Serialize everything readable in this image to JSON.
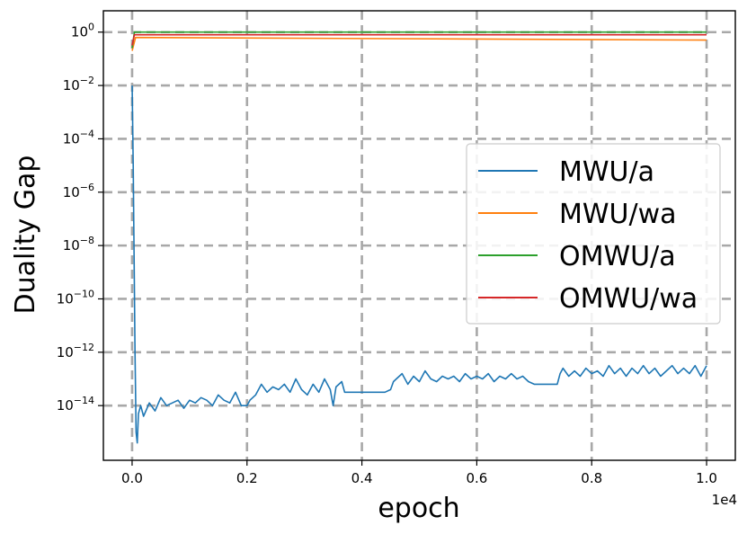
{
  "chart_data": {
    "type": "line",
    "xlabel": "epoch",
    "ylabel": "Duality Gap",
    "x_offset_label": "1e4",
    "xlim": [
      -500,
      10500
    ],
    "ylim_log10": [
      -16.05,
      0.8
    ],
    "yscale": "log",
    "grid": true,
    "legend_position": "center-right",
    "x_ticks": [
      {
        "value": 0,
        "label": "0.0"
      },
      {
        "value": 2000,
        "label": "0.2"
      },
      {
        "value": 4000,
        "label": "0.4"
      },
      {
        "value": 6000,
        "label": "0.6"
      },
      {
        "value": 8000,
        "label": "0.8"
      },
      {
        "value": 10000,
        "label": "1.0"
      }
    ],
    "y_ticks": [
      {
        "exp": 0,
        "base": "10",
        "sup": "0"
      },
      {
        "exp": -2,
        "base": "10",
        "sup": "−2"
      },
      {
        "exp": -4,
        "base": "10",
        "sup": "−4"
      },
      {
        "exp": -6,
        "base": "10",
        "sup": "−6"
      },
      {
        "exp": -8,
        "base": "10",
        "sup": "−8"
      },
      {
        "exp": -10,
        "base": "10",
        "sup": "−10"
      },
      {
        "exp": -12,
        "base": "10",
        "sup": "−12"
      },
      {
        "exp": -14,
        "base": "10",
        "sup": "−14"
      }
    ],
    "series": [
      {
        "name": "MWU/a",
        "color": "#1f77b4",
        "points": [
          [
            0,
            -2.0
          ],
          [
            20,
            -5.0
          ],
          [
            50,
            -12.0
          ],
          [
            70,
            -15.0
          ],
          [
            90,
            -15.4
          ],
          [
            110,
            -14.3
          ],
          [
            150,
            -14.0
          ],
          [
            200,
            -14.4
          ],
          [
            260,
            -14.1
          ],
          [
            300,
            -13.9
          ],
          [
            400,
            -14.2
          ],
          [
            500,
            -13.7
          ],
          [
            600,
            -14.0
          ],
          [
            700,
            -13.9
          ],
          [
            800,
            -13.8
          ],
          [
            900,
            -14.1
          ],
          [
            1000,
            -13.8
          ],
          [
            1100,
            -13.9
          ],
          [
            1200,
            -13.7
          ],
          [
            1300,
            -13.8
          ],
          [
            1400,
            -14.0
          ],
          [
            1500,
            -13.6
          ],
          [
            1600,
            -13.8
          ],
          [
            1700,
            -13.9
          ],
          [
            1800,
            -13.5
          ],
          [
            1900,
            -14.0
          ],
          [
            2000,
            -14.0
          ],
          [
            2050,
            -13.8
          ],
          [
            2150,
            -13.6
          ],
          [
            2250,
            -13.2
          ],
          [
            2350,
            -13.5
          ],
          [
            2450,
            -13.3
          ],
          [
            2550,
            -13.4
          ],
          [
            2650,
            -13.2
          ],
          [
            2750,
            -13.5
          ],
          [
            2850,
            -13.0
          ],
          [
            2950,
            -13.4
          ],
          [
            3050,
            -13.6
          ],
          [
            3150,
            -13.2
          ],
          [
            3250,
            -13.5
          ],
          [
            3350,
            -13.0
          ],
          [
            3450,
            -13.4
          ],
          [
            3500,
            -14.0
          ],
          [
            3550,
            -13.3
          ],
          [
            3650,
            -13.1
          ],
          [
            3700,
            -13.5
          ],
          [
            3800,
            -13.5
          ],
          [
            4000,
            -13.5
          ],
          [
            4200,
            -13.5
          ],
          [
            4400,
            -13.5
          ],
          [
            4500,
            -13.4
          ],
          [
            4550,
            -13.1
          ],
          [
            4600,
            -13.0
          ],
          [
            4700,
            -12.8
          ],
          [
            4800,
            -13.2
          ],
          [
            4900,
            -12.9
          ],
          [
            5000,
            -13.1
          ],
          [
            5100,
            -12.7
          ],
          [
            5200,
            -13.0
          ],
          [
            5300,
            -13.1
          ],
          [
            5400,
            -12.9
          ],
          [
            5500,
            -13.0
          ],
          [
            5600,
            -12.9
          ],
          [
            5700,
            -13.1
          ],
          [
            5800,
            -12.8
          ],
          [
            5900,
            -13.0
          ],
          [
            6000,
            -12.9
          ],
          [
            6100,
            -13.0
          ],
          [
            6200,
            -12.8
          ],
          [
            6300,
            -13.1
          ],
          [
            6400,
            -12.9
          ],
          [
            6500,
            -13.0
          ],
          [
            6600,
            -12.8
          ],
          [
            6700,
            -13.0
          ],
          [
            6800,
            -12.9
          ],
          [
            6900,
            -13.1
          ],
          [
            7000,
            -13.2
          ],
          [
            7200,
            -13.2
          ],
          [
            7400,
            -13.2
          ],
          [
            7450,
            -12.8
          ],
          [
            7500,
            -12.6
          ],
          [
            7600,
            -12.9
          ],
          [
            7700,
            -12.7
          ],
          [
            7800,
            -12.9
          ],
          [
            7900,
            -12.6
          ],
          [
            8000,
            -12.8
          ],
          [
            8100,
            -12.7
          ],
          [
            8200,
            -12.9
          ],
          [
            8300,
            -12.5
          ],
          [
            8400,
            -12.8
          ],
          [
            8500,
            -12.6
          ],
          [
            8600,
            -12.9
          ],
          [
            8700,
            -12.6
          ],
          [
            8800,
            -12.8
          ],
          [
            8900,
            -12.5
          ],
          [
            9000,
            -12.8
          ],
          [
            9100,
            -12.6
          ],
          [
            9200,
            -12.9
          ],
          [
            9300,
            -12.7
          ],
          [
            9400,
            -12.5
          ],
          [
            9500,
            -12.8
          ],
          [
            9600,
            -12.6
          ],
          [
            9700,
            -12.8
          ],
          [
            9800,
            -12.5
          ],
          [
            9900,
            -12.9
          ],
          [
            10000,
            -12.5
          ]
        ]
      },
      {
        "name": "MWU/wa",
        "color": "#ff7f0e",
        "points": [
          [
            0,
            -0.7
          ],
          [
            60,
            -0.2
          ],
          [
            10000,
            -0.3
          ]
        ]
      },
      {
        "name": "OMWU/a",
        "color": "#2ca02c",
        "points": [
          [
            0,
            -0.6
          ],
          [
            40,
            0.0
          ],
          [
            10000,
            0.0
          ]
        ]
      },
      {
        "name": "OMWU/wa",
        "color": "#d62728",
        "points": [
          [
            0,
            -0.5
          ],
          [
            40,
            -0.1
          ],
          [
            10000,
            -0.1
          ]
        ]
      }
    ]
  }
}
